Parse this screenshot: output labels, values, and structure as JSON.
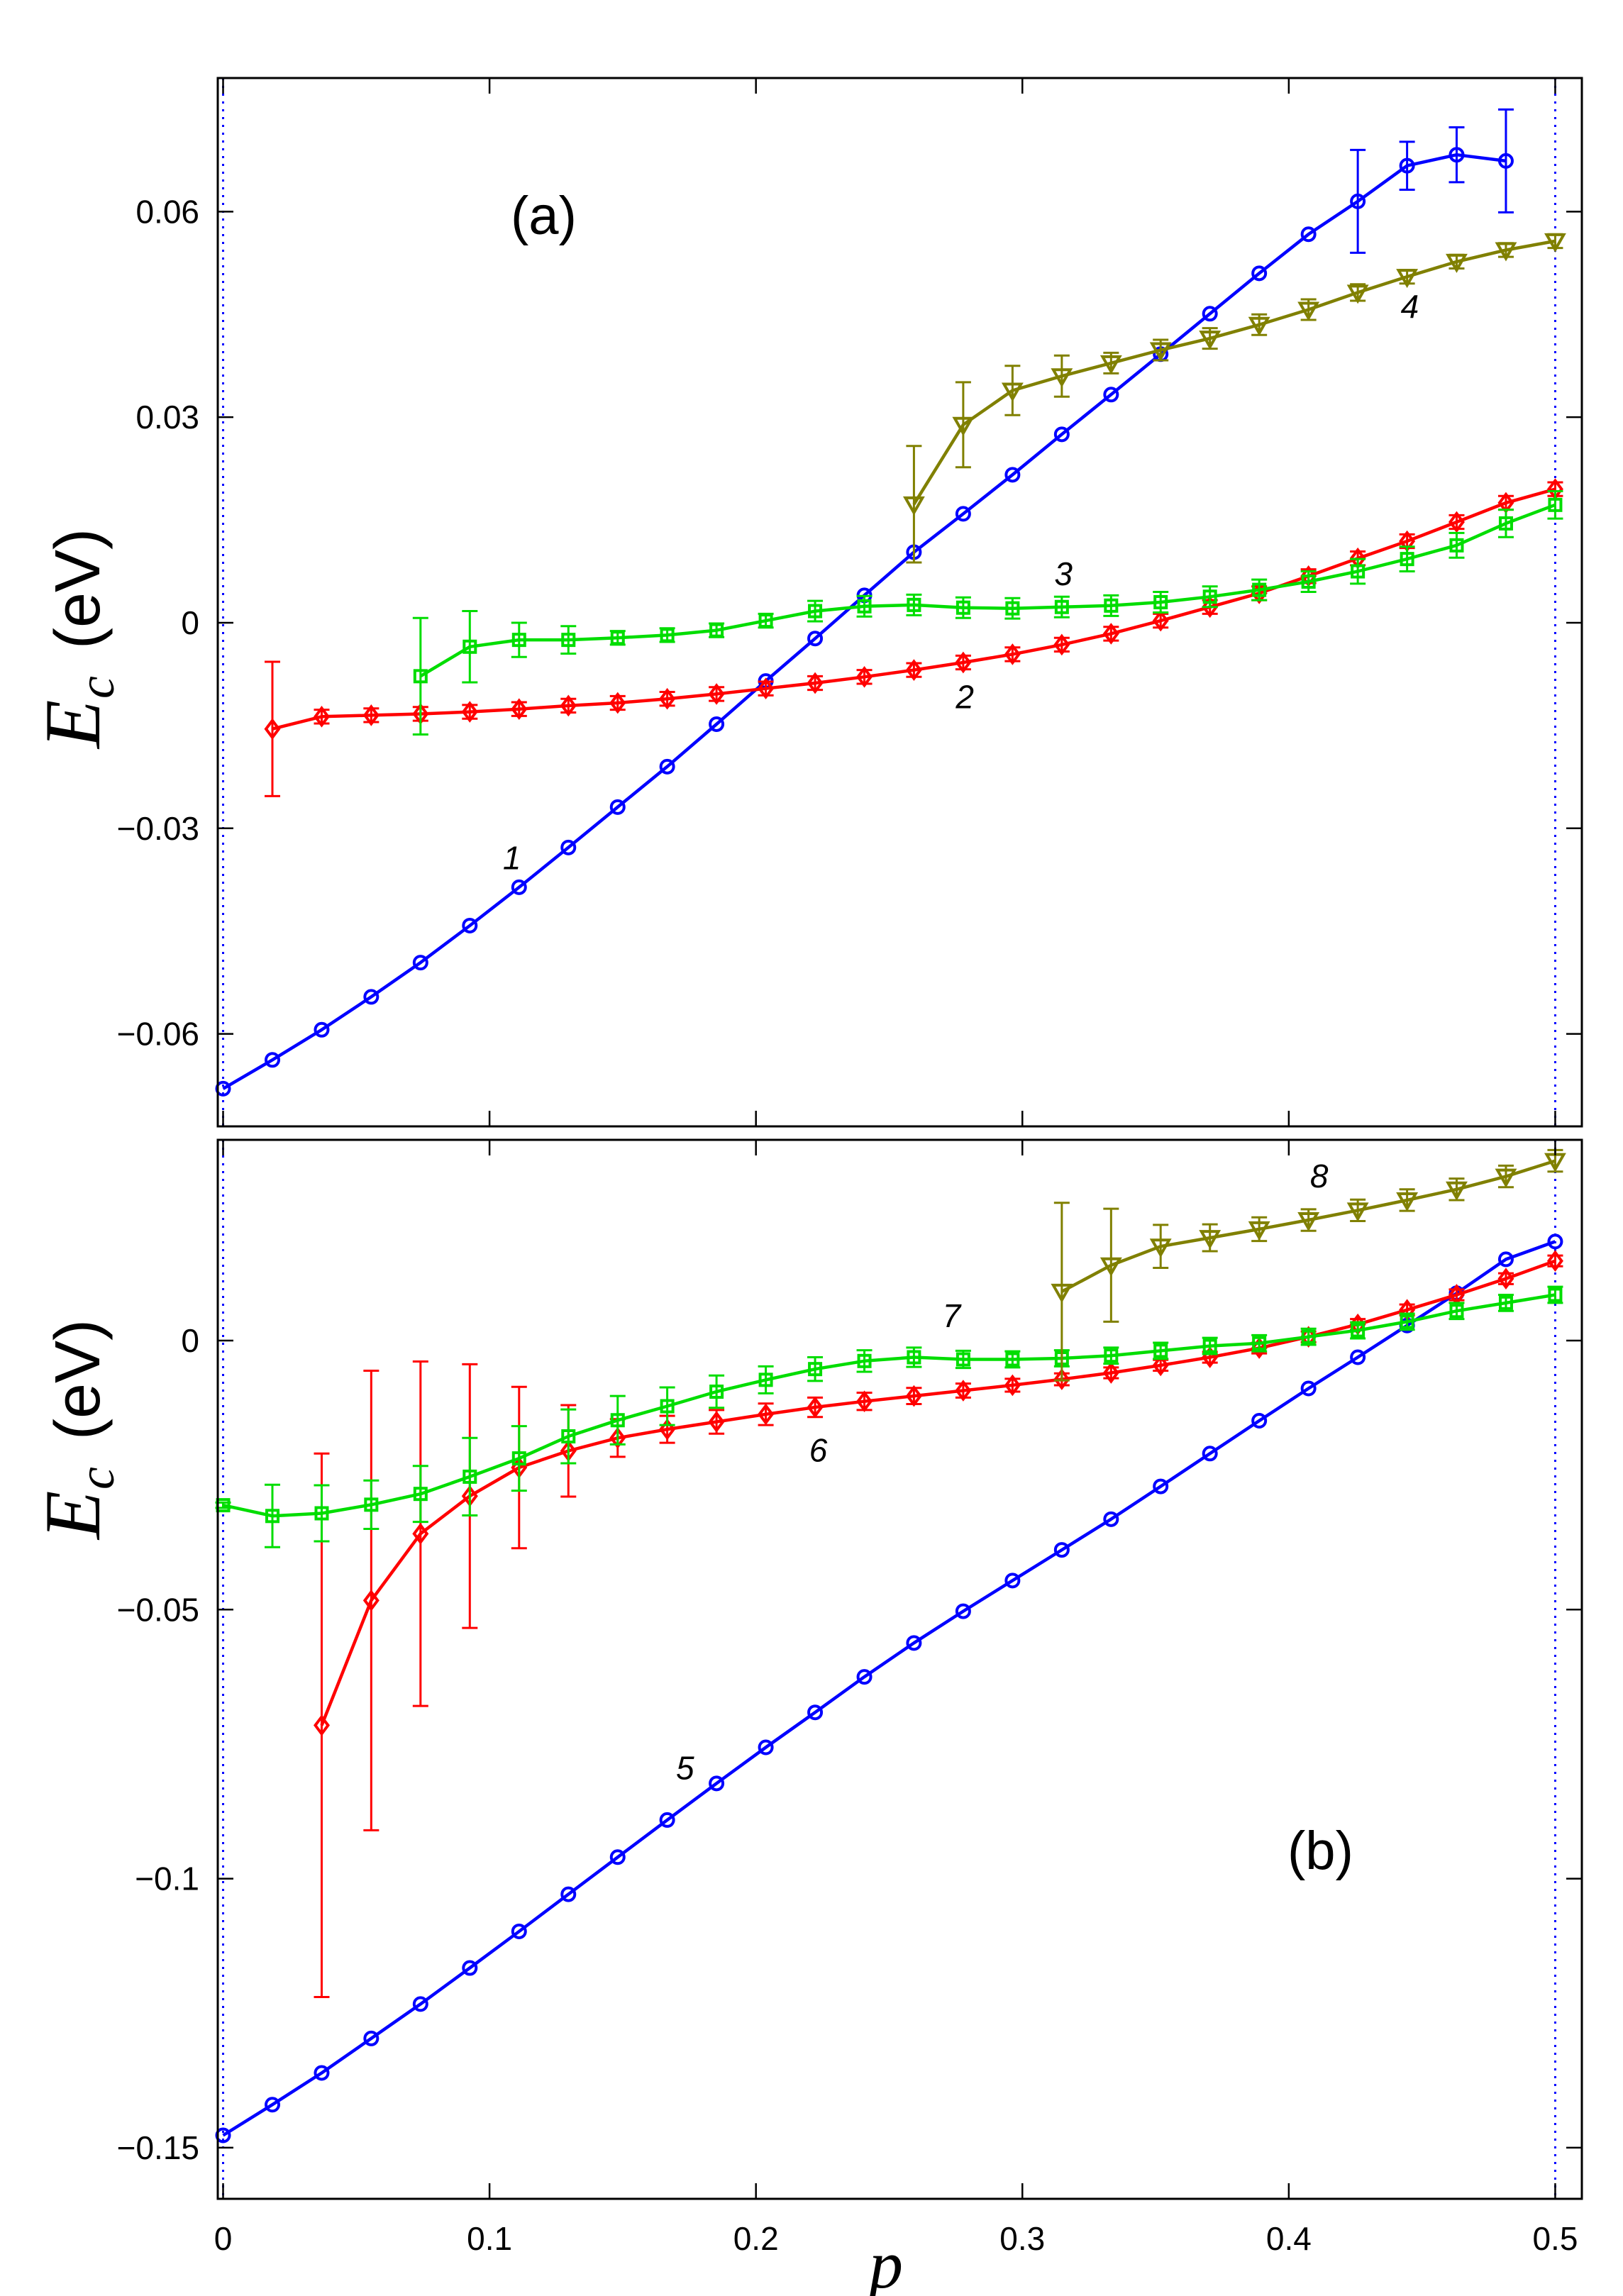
{
  "chart_data": [
    {
      "type": "line",
      "panel_label": "(a)",
      "ylabel": {
        "symbol": "E",
        "subscript": "c",
        "unit": "(eV)"
      },
      "xlim": [
        -0.002,
        0.51
      ],
      "ylim": [
        -0.0735,
        0.0795
      ],
      "xticks": [
        0,
        0.1,
        0.2,
        0.3,
        0.4,
        0.5
      ],
      "xtick_labels": [
        "0",
        "0.1",
        "0.2",
        "0.3",
        "0.4",
        "0.5"
      ],
      "yticks": [
        -0.06,
        -0.03,
        0,
        0.03,
        0.06
      ],
      "ytick_labels": [
        "−0.06",
        "−0.03",
        "0",
        "0.03",
        "0.06"
      ],
      "vlines": [
        0,
        0.5
      ],
      "series": [
        {
          "name": "1",
          "label": "1",
          "color": "#0000ff",
          "marker": "circle",
          "x": [
            0,
            0.0185,
            0.037,
            0.0556,
            0.0741,
            0.0926,
            0.1111,
            0.1296,
            0.1481,
            0.1667,
            0.1852,
            0.2037,
            0.2222,
            0.2407,
            0.2593,
            0.2778,
            0.2963,
            0.3148,
            0.3333,
            0.3519,
            0.3704,
            0.3889,
            0.4074,
            0.4259,
            0.4444,
            0.463,
            0.4815
          ],
          "y": [
            -0.068,
            -0.0638,
            -0.0594,
            -0.0546,
            -0.0496,
            -0.0442,
            -0.0386,
            -0.0328,
            -0.0269,
            -0.021,
            -0.0148,
            -0.0085,
            -0.0023,
            0.004,
            0.0103,
            0.0159,
            0.0216,
            0.0275,
            0.0333,
            0.0392,
            0.0451,
            0.051,
            0.0567,
            0.0615,
            0.0667,
            0.0683,
            0.0674
          ],
          "err": [
            0,
            0,
            0,
            0,
            0,
            0,
            0,
            0,
            0,
            0,
            0,
            0,
            0,
            0,
            0,
            0,
            0,
            0,
            0,
            0,
            0,
            0,
            0,
            0.0075,
            0.0035,
            0.004,
            0.0075
          ],
          "label_at": [
            0.105,
            -0.036
          ]
        },
        {
          "name": "2",
          "label": "2",
          "color": "#ff0000",
          "marker": "diamond",
          "x": [
            0.0185,
            0.037,
            0.0556,
            0.0741,
            0.0926,
            0.1111,
            0.1296,
            0.1481,
            0.1667,
            0.1852,
            0.2037,
            0.2222,
            0.2407,
            0.2593,
            0.2778,
            0.2963,
            0.3148,
            0.3333,
            0.3519,
            0.3704,
            0.3889,
            0.4074,
            0.4259,
            0.4444,
            0.463,
            0.4815,
            0.5
          ],
          "y": [
            -0.0155,
            -0.0137,
            -0.0135,
            -0.0133,
            -0.013,
            -0.0126,
            -0.0121,
            -0.0117,
            -0.0111,
            -0.0104,
            -0.0096,
            -0.0088,
            -0.0079,
            -0.0069,
            -0.0058,
            -0.0046,
            -0.0032,
            -0.0016,
            0.0003,
            0.0023,
            0.0043,
            0.0068,
            0.0094,
            0.0119,
            0.0147,
            0.0175,
            0.0195
          ],
          "err": [
            0.0098,
            0.001,
            0.001,
            0.001,
            0.001,
            0.001,
            0.001,
            0.001,
            0.001,
            0.001,
            0.001,
            0.001,
            0.001,
            0.001,
            0.001,
            0.001,
            0.001,
            0.001,
            0.001,
            0.001,
            0.001,
            0.001,
            0.001,
            0.001,
            0.001,
            0.001,
            0.001
          ],
          "label_at": [
            0.275,
            -0.0125
          ]
        },
        {
          "name": "3",
          "label": "3",
          "color": "#00dd00",
          "marker": "square",
          "x": [
            0.0741,
            0.0926,
            0.1111,
            0.1296,
            0.1481,
            0.1667,
            0.1852,
            0.2037,
            0.2222,
            0.2407,
            0.2593,
            0.2778,
            0.2963,
            0.3148,
            0.3333,
            0.3519,
            0.3704,
            0.3889,
            0.4074,
            0.4259,
            0.4444,
            0.463,
            0.4815,
            0.5
          ],
          "y": [
            -0.0078,
            -0.0035,
            -0.0025,
            -0.0025,
            -0.0022,
            -0.0018,
            -0.0011,
            0.0003,
            0.0017,
            0.0024,
            0.0026,
            0.0022,
            0.0021,
            0.0023,
            0.0025,
            0.003,
            0.0038,
            0.0048,
            0.006,
            0.0075,
            0.0093,
            0.0113,
            0.0145,
            0.0172
          ],
          "err": [
            0.0085,
            0.0052,
            0.0025,
            0.002,
            0.001,
            0.001,
            0.001,
            0.001,
            0.0015,
            0.0015,
            0.0015,
            0.0015,
            0.0015,
            0.0015,
            0.0015,
            0.0015,
            0.0015,
            0.0015,
            0.0015,
            0.0018,
            0.0018,
            0.0018,
            0.002,
            0.002
          ],
          "label_at": [
            0.312,
            0.0055
          ]
        },
        {
          "name": "4",
          "label": "4",
          "color": "#808000",
          "marker": "triangle",
          "x": [
            0.2593,
            0.2778,
            0.2963,
            0.3148,
            0.3333,
            0.3519,
            0.3704,
            0.3889,
            0.4074,
            0.4259,
            0.4444,
            0.463,
            0.4815,
            0.5
          ],
          "y": [
            0.0173,
            0.0289,
            0.0339,
            0.036,
            0.0379,
            0.0398,
            0.0415,
            0.0435,
            0.0457,
            0.0482,
            0.0505,
            0.0527,
            0.0544,
            0.0557
          ],
          "err": [
            0.0085,
            0.0062,
            0.0036,
            0.003,
            0.0015,
            0.0015,
            0.0015,
            0.0015,
            0.0015,
            0.0012,
            0.001,
            0.001,
            0.001,
            0.001
          ],
          "label_at": [
            0.442,
            0.0445
          ]
        }
      ]
    },
    {
      "type": "line",
      "panel_label": "(b)",
      "ylabel": {
        "symbol": "E",
        "subscript": "c",
        "unit": "(eV)"
      },
      "xlim": [
        -0.002,
        0.51
      ],
      "ylim": [
        -0.1595,
        0.0373
      ],
      "xticks": [
        0,
        0.1,
        0.2,
        0.3,
        0.4,
        0.5
      ],
      "xtick_labels": [
        "0",
        "0.1",
        "0.2",
        "0.3",
        "0.4",
        "0.5"
      ],
      "yticks": [
        -0.15,
        -0.1,
        -0.05,
        0
      ],
      "ytick_labels": [
        "−0.15",
        "−0.1",
        "−0.05",
        "0"
      ],
      "vlines": [
        0,
        0.5
      ],
      "series": [
        {
          "name": "5",
          "label": "5",
          "color": "#0000ff",
          "marker": "circle",
          "x": [
            0,
            0.0185,
            0.037,
            0.0556,
            0.0741,
            0.0926,
            0.1111,
            0.1296,
            0.1481,
            0.1667,
            0.1852,
            0.2037,
            0.2222,
            0.2407,
            0.2593,
            0.2778,
            0.2963,
            0.3148,
            0.3333,
            0.3519,
            0.3704,
            0.3889,
            0.4074,
            0.4259,
            0.4444,
            0.463,
            0.4815,
            0.5
          ],
          "y": [
            -0.1477,
            -0.142,
            -0.1361,
            -0.1297,
            -0.1233,
            -0.1166,
            -0.1098,
            -0.1029,
            -0.096,
            -0.0891,
            -0.0823,
            -0.0756,
            -0.0691,
            -0.0625,
            -0.0562,
            -0.0503,
            -0.0446,
            -0.0389,
            -0.0332,
            -0.0271,
            -0.021,
            -0.0149,
            -0.0089,
            -0.0031,
            0.0028,
            0.0088,
            0.0151,
            0.0184
          ],
          "err": [
            0,
            0,
            0,
            0,
            0,
            0,
            0,
            0,
            0,
            0,
            0,
            0,
            0,
            0,
            0,
            0,
            0,
            0,
            0,
            0,
            0,
            0,
            0,
            0,
            0,
            0,
            0,
            0
          ],
          "label_at": [
            0.17,
            -0.0815
          ]
        },
        {
          "name": "6",
          "label": "6",
          "color": "#ff0000",
          "marker": "diamond",
          "x": [
            0.037,
            0.0556,
            0.0741,
            0.0926,
            0.1111,
            0.1296,
            0.1481,
            0.1667,
            0.1852,
            0.2037,
            0.2222,
            0.2407,
            0.2593,
            0.2778,
            0.2963,
            0.3148,
            0.3333,
            0.3519,
            0.3704,
            0.3889,
            0.4074,
            0.4259,
            0.4444,
            0.463,
            0.4815,
            0.5
          ],
          "y": [
            -0.0715,
            -0.0483,
            -0.0359,
            -0.0289,
            -0.0236,
            -0.0205,
            -0.0181,
            -0.0165,
            -0.0151,
            -0.0137,
            -0.0124,
            -0.0113,
            -0.0103,
            -0.0093,
            -0.0083,
            -0.0072,
            -0.006,
            -0.0046,
            -0.0031,
            -0.0014,
            0.0007,
            0.003,
            0.0057,
            0.0085,
            0.0115,
            0.0148
          ],
          "err": [
            0.0505,
            0.0427,
            0.032,
            0.0245,
            0.015,
            0.0085,
            0.0035,
            0.0025,
            0.0022,
            0.002,
            0.0018,
            0.0016,
            0.0015,
            0.0013,
            0.0012,
            0.0011,
            0.001,
            0.001,
            0.001,
            0.001,
            0.001,
            0.001,
            0.001,
            0.001,
            0.001,
            0.001
          ],
          "label_at": [
            0.22,
            -0.0225
          ]
        },
        {
          "name": "7",
          "label": "7",
          "color": "#00dd00",
          "marker": "square",
          "x": [
            0,
            0.0185,
            0.037,
            0.0556,
            0.0741,
            0.0926,
            0.1111,
            0.1296,
            0.1481,
            0.1667,
            0.1852,
            0.2037,
            0.2222,
            0.2407,
            0.2593,
            0.2778,
            0.2963,
            0.3148,
            0.3333,
            0.3519,
            0.3704,
            0.3889,
            0.4074,
            0.4259,
            0.4444,
            0.463,
            0.4815,
            0.5
          ],
          "y": [
            -0.0306,
            -0.0326,
            -0.0321,
            -0.0305,
            -0.0285,
            -0.0253,
            -0.0219,
            -0.0178,
            -0.0148,
            -0.0122,
            -0.0095,
            -0.0073,
            -0.0053,
            -0.0038,
            -0.0031,
            -0.0035,
            -0.0035,
            -0.0033,
            -0.0028,
            -0.0019,
            -0.001,
            -0.0005,
            0.0007,
            0.0019,
            0.0035,
            0.0055,
            0.007,
            0.0085
          ],
          "err": [
            0.0005,
            0.0058,
            0.0052,
            0.0045,
            0.0052,
            0.0072,
            0.006,
            0.005,
            0.0045,
            0.0035,
            0.003,
            0.0025,
            0.0022,
            0.002,
            0.0018,
            0.0016,
            0.0015,
            0.0015,
            0.0015,
            0.0015,
            0.0015,
            0.0015,
            0.0015,
            0.0015,
            0.0015,
            0.0015,
            0.0015,
            0.0015
          ],
          "label_at": [
            0.27,
            0.0025
          ]
        },
        {
          "name": "8",
          "label": "8",
          "color": "#808000",
          "marker": "triangle",
          "x": [
            0.3148,
            0.3333,
            0.3519,
            0.3704,
            0.3889,
            0.4074,
            0.4259,
            0.4444,
            0.463,
            0.4815,
            0.5
          ],
          "y": [
            0.0091,
            0.014,
            0.0175,
            0.0191,
            0.0207,
            0.0224,
            0.0242,
            0.0261,
            0.0281,
            0.0305,
            0.0334
          ],
          "err": [
            0.0165,
            0.0105,
            0.004,
            0.0025,
            0.0022,
            0.002,
            0.002,
            0.002,
            0.002,
            0.002,
            0.002
          ],
          "label_at": [
            0.408,
            0.0285
          ]
        }
      ]
    }
  ],
  "xlabel": "p"
}
